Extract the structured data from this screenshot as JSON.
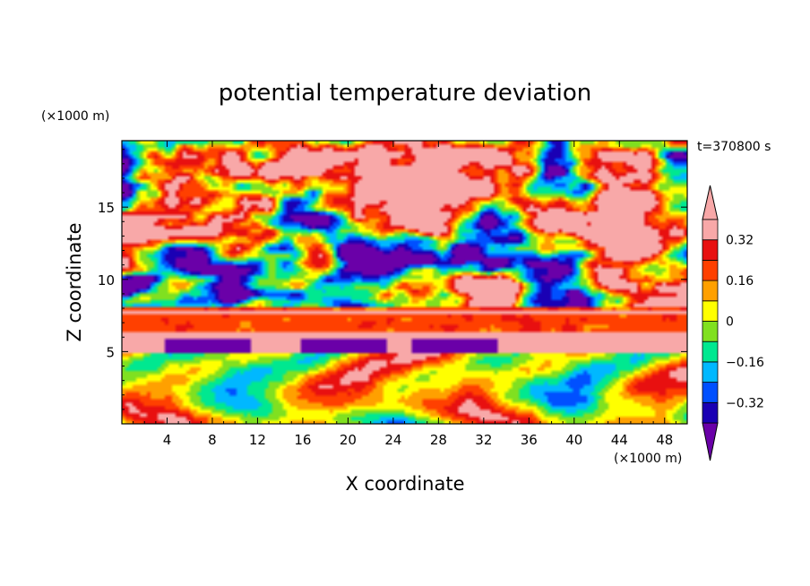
{
  "chart_data": {
    "type": "heatmap",
    "title": "potential temperature deviation",
    "xlabel": "X coordinate",
    "ylabel": "Z coordinate",
    "x_unit": "(×1000 m)",
    "y_unit": "(×1000 m)",
    "time_label": "t=370800 s",
    "xlim": [
      0,
      50
    ],
    "ylim": [
      0,
      19.6
    ],
    "x_ticks": [
      4,
      8,
      12,
      16,
      20,
      24,
      28,
      32,
      36,
      40,
      44,
      48
    ],
    "x_tick_labels": [
      "4",
      "8",
      "12",
      "16",
      "20",
      "24",
      "28",
      "32",
      "36",
      "40",
      "44",
      "48"
    ],
    "y_ticks": [
      5,
      10,
      15
    ],
    "y_tick_labels": [
      "5",
      "10",
      "15"
    ],
    "colorbar": {
      "levels": [
        -0.4,
        -0.32,
        -0.24,
        -0.16,
        -0.08,
        0,
        0.08,
        0.16,
        0.24,
        0.32,
        0.4
      ],
      "labels": [
        {
          "value": 0.32,
          "text": "0.32"
        },
        {
          "value": 0.16,
          "text": "0.16"
        },
        {
          "value": 0,
          "text": "0"
        },
        {
          "value": -0.16,
          "text": "−0.16"
        },
        {
          "value": -0.32,
          "text": "−0.32"
        }
      ],
      "colors": [
        "#6a00a8",
        "#1a00b4",
        "#0050ff",
        "#00b8ff",
        "#00e890",
        "#80e020",
        "#ffff00",
        "#ffa000",
        "#ff4000",
        "#e81010",
        "#f8a8a8"
      ],
      "extend": "both"
    },
    "colors": {
      "over": "#f8a8a8",
      "under": "#6a00a8"
    }
  }
}
